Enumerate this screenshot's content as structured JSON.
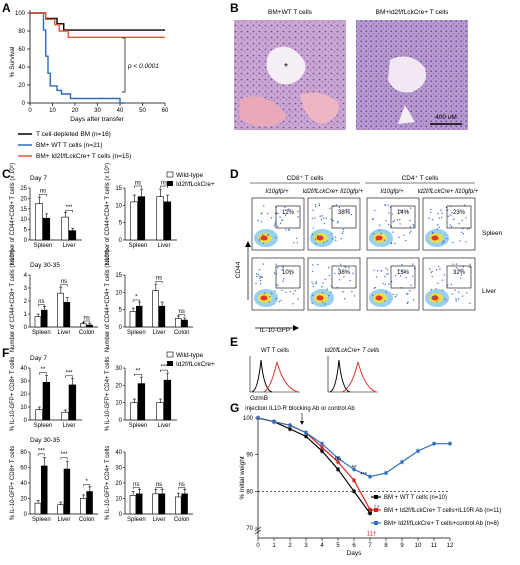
{
  "panels": {
    "A": {
      "label": "A",
      "ylabel": "% Survival",
      "xlabel": "Days after transfer",
      "yticks": [
        "0",
        "20",
        "40",
        "60",
        "80",
        "100"
      ],
      "xticks": [
        "0",
        "10",
        "20",
        "30",
        "40",
        "50",
        "60"
      ],
      "pvalue": "p < 0.0001",
      "legend": [
        "T cell-depleted BM (n=16)",
        "BM+ WT T cells (n=21)",
        "BM+ Id2f/fLckCre+ T cells (n=15)"
      ],
      "colors": [
        "#000000",
        "#2b6cb8",
        "#e2573a"
      ]
    },
    "B": {
      "label": "B",
      "titles": [
        "BM+WT T cells",
        "BM+Id2f/fLckCre+ T cells"
      ],
      "scale": "400 uM",
      "asterisk": "*"
    },
    "C": {
      "label": "C",
      "legend": [
        "Wild-type",
        "Id2f/fLckCre+"
      ],
      "day7": "Day 7",
      "day30": "Day 30-35",
      "yl1": "Number of CD44+CD8+ T cells (x 10⁵)",
      "yl2": "Number of CD44+CD4+ T cells (x 10⁵)",
      "ticks_day7_cd8": [
        "0",
        "5",
        "10",
        "15",
        "20",
        "25"
      ],
      "ticks_day7_cd4": [
        "0",
        "5",
        "10",
        "15"
      ],
      "ticks_d30_cd8": [
        "0",
        "1",
        "2",
        "3",
        "4"
      ],
      "ticks_d30_cd4": [
        "0",
        "5",
        "10",
        "15"
      ],
      "cats2": [
        "Spleen",
        "Liver"
      ],
      "cats3": [
        "Spleen",
        "Liver",
        "Colon"
      ],
      "sig": {
        "a": "ns",
        "b": "***",
        "c": "ns",
        "d": "ns",
        "e": "ns",
        "f": "ns",
        "g": "ns",
        "h": "*",
        "i": "ns"
      }
    },
    "D": {
      "label": "D",
      "col_groups": [
        "CD8⁺ T cells",
        "CD4⁺ T cells"
      ],
      "col_heads": [
        "Il10gfp/+",
        "Id2f/fLckCre+ Il10gfp/+",
        "Il10gfp/+",
        "Id2f/fLckCre+ Il10gfp/+"
      ],
      "rows": [
        "Spleen",
        "Liver"
      ],
      "pcts_spleen": [
        "12%",
        "38%",
        "14%",
        "23%"
      ],
      "pcts_liver": [
        "10%",
        "38%",
        "13%",
        "32%"
      ],
      "ylabel": "CD44",
      "xlabel": "IL-10-GFP"
    },
    "E": {
      "label": "E",
      "titles": [
        "WT T cells",
        "Id2f/fLckCre+ T cells"
      ],
      "xlabel": "GzmB"
    },
    "F": {
      "label": "F",
      "legend": [
        "Wild-type",
        "Id2f/fLckCre+"
      ],
      "day7": "Day 7",
      "day30": "Day 30-35",
      "yl1": "% IL-10-GFP+ CD8+ T cells",
      "yl2": "% IL-10-GFP+ CD4+ T cells",
      "ticks_d7_cd8": [
        "0",
        "10",
        "20",
        "30",
        "40"
      ],
      "ticks_d7_cd4": [
        "0",
        "10",
        "20",
        "30"
      ],
      "ticks_d30_cd8": [
        "0",
        "20",
        "40",
        "60",
        "80"
      ],
      "ticks_d30_cd4": [
        "0",
        "10",
        "20",
        "30",
        "40"
      ],
      "sig": {
        "a": "**",
        "b": "***",
        "c": "**",
        "d": "***",
        "e": "***",
        "f": "***",
        "g": "*",
        "h": "ns",
        "i": "ns",
        "j": "ns"
      }
    },
    "G": {
      "label": "G",
      "ylabel": "% Initial weight",
      "xlabel": "Days",
      "annot": "injection IL10-R blocking Ab or control Ab",
      "yticks": [
        "70",
        "80",
        "90",
        "100"
      ],
      "xticks": [
        "0",
        "1",
        "2",
        "3",
        "4",
        "5",
        "6",
        "7",
        "8",
        "9",
        "10",
        "11",
        "12"
      ],
      "legend": [
        "BM + WT T cells (n=10)",
        "BM + Id2f/fLckCre+ T cells+IL10R Ab (n=11)",
        "BM+ Id2f/fLckCre+ T cells+control Ab (n=8)"
      ],
      "colors": [
        "#000000",
        "#e2211c",
        "#2f6fb8"
      ],
      "sig": [
        "ns",
        "**",
        "***"
      ],
      "deaths": [
        "1†",
        "1†",
        "11†"
      ]
    }
  },
  "chart_data": [
    {
      "type": "line",
      "title": "",
      "xlabel": "Days after transfer",
      "ylabel": "% Survival",
      "xlim": [
        0,
        60
      ],
      "ylim": [
        0,
        100
      ],
      "series": [
        {
          "name": "T cell-depleted BM (n=16)",
          "values": [
            [
              0,
              100
            ],
            [
              5,
              100
            ],
            [
              7,
              94
            ],
            [
              12,
              88
            ],
            [
              15,
              81
            ],
            [
              60,
              81
            ]
          ]
        },
        {
          "name": "BM+ WT T cells (n=21)",
          "values": [
            [
              0,
              100
            ],
            [
              5,
              100
            ],
            [
              6,
              81
            ],
            [
              7,
              52
            ],
            [
              8,
              33
            ],
            [
              9,
              19
            ],
            [
              12,
              14
            ],
            [
              14,
              10
            ],
            [
              18,
              5
            ],
            [
              40,
              5
            ],
            [
              40,
              0
            ],
            [
              42,
              0
            ]
          ]
        },
        {
          "name": "BM+ Id2f/fLckCre+ T cells (n=15)",
          "values": [
            [
              0,
              100
            ],
            [
              5,
              100
            ],
            [
              7,
              93
            ],
            [
              11,
              87
            ],
            [
              13,
              80
            ],
            [
              17,
              73
            ],
            [
              60,
              73
            ]
          ]
        }
      ]
    },
    {
      "type": "bar",
      "title": "Day 7",
      "ylabel": "Number of CD44+CD8+ T cells (x 10⁵)",
      "categories": [
        "Spleen",
        "Liver"
      ],
      "series": [
        {
          "name": "Wild-type",
          "values": [
            17.5,
            11
          ]
        },
        {
          "name": "Id2f/fLckCre+",
          "values": [
            10.5,
            4.5
          ]
        }
      ],
      "ylim": [
        0,
        25
      ]
    },
    {
      "type": "bar",
      "title": "Day 7",
      "ylabel": "Number of CD44+CD4+ T cells (x 10⁵)",
      "categories": [
        "Spleen",
        "Liver"
      ],
      "series": [
        {
          "name": "Wild-type",
          "values": [
            11,
            12.5
          ]
        },
        {
          "name": "Id2f/fLckCre+",
          "values": [
            12.5,
            11
          ]
        }
      ],
      "ylim": [
        0,
        15
      ]
    },
    {
      "type": "bar",
      "title": "Day 30-35",
      "ylabel": "Number of CD44+CD8+ T cells (x 10⁵)",
      "categories": [
        "Spleen",
        "Liver",
        "Colon"
      ],
      "series": [
        {
          "name": "Wild-type",
          "values": [
            0.8,
            2.6,
            0.25
          ]
        },
        {
          "name": "Id2f/fLckCre+",
          "values": [
            1.3,
            1.9,
            0.15
          ]
        }
      ],
      "ylim": [
        0,
        4
      ]
    },
    {
      "type": "bar",
      "title": "Day 30-35",
      "ylabel": "Number of CD44+CD4+ T cells (x 10⁵)",
      "categories": [
        "Spleen",
        "Liver",
        "Colon"
      ],
      "series": [
        {
          "name": "Wild-type",
          "values": [
            4.5,
            10.5,
            2.5
          ]
        },
        {
          "name": "Id2f/fLckCre+",
          "values": [
            6,
            6,
            2
          ]
        }
      ],
      "ylim": [
        0,
        15
      ]
    },
    {
      "type": "bar",
      "title": "Day 7",
      "ylabel": "% IL-10-GFP+ CD8+ T cells",
      "categories": [
        "Spleen",
        "Liver"
      ],
      "series": [
        {
          "name": "Wild-type",
          "values": [
            8,
            6
          ]
        },
        {
          "name": "Id2f/fLckCre+",
          "values": [
            29,
            27
          ]
        }
      ],
      "ylim": [
        0,
        40
      ]
    },
    {
      "type": "bar",
      "title": "Day 7",
      "ylabel": "% IL-10-GFP+ CD4+ T cells",
      "categories": [
        "Spleen",
        "Liver"
      ],
      "series": [
        {
          "name": "Wild-type",
          "values": [
            10,
            10
          ]
        },
        {
          "name": "Id2f/fLckCre+",
          "values": [
            21,
            23
          ]
        }
      ],
      "ylim": [
        0,
        30
      ]
    },
    {
      "type": "bar",
      "title": "Day 30-35",
      "ylabel": "% IL-10-GFP+ CD8+ T cells",
      "categories": [
        "Spleen",
        "Liver",
        "Colon"
      ],
      "series": [
        {
          "name": "Wild-type",
          "values": [
            14,
            12,
            20
          ]
        },
        {
          "name": "Id2f/fLckCre+",
          "values": [
            62,
            58,
            29
          ]
        }
      ],
      "ylim": [
        0,
        80
      ]
    },
    {
      "type": "bar",
      "title": "Day 30-35",
      "ylabel": "% IL-10-GFP+ CD4+ T cells",
      "categories": [
        "Spleen",
        "Liver",
        "Colon"
      ],
      "series": [
        {
          "name": "Wild-type",
          "values": [
            12,
            13,
            11
          ]
        },
        {
          "name": "Id2f/fLckCre+",
          "values": [
            13,
            13,
            13
          ]
        }
      ],
      "ylim": [
        0,
        40
      ]
    },
    {
      "type": "line",
      "title": "",
      "xlabel": "Days",
      "ylabel": "% Initial weight",
      "xlim": [
        0,
        12
      ],
      "ylim": [
        70,
        100
      ],
      "series": [
        {
          "name": "BM + WT T cells (n=10)",
          "values": [
            [
              0,
              100
            ],
            [
              1,
              99
            ],
            [
              2,
              97
            ],
            [
              3,
              95
            ],
            [
              4,
              91
            ],
            [
              5,
              86
            ],
            [
              6,
              80
            ],
            [
              7,
              74
            ]
          ]
        },
        {
          "name": "BM + Id2f/fLckCre+ T cells+IL10R Ab (n=11)",
          "values": [
            [
              0,
              100
            ],
            [
              1,
              99
            ],
            [
              2,
              98
            ],
            [
              3,
              96
            ],
            [
              4,
              92
            ],
            [
              5,
              88
            ],
            [
              6,
              83
            ],
            [
              7,
              75
            ]
          ]
        },
        {
          "name": "BM+ Id2f/fLckCre+ T cells+control Ab (n=8)",
          "values": [
            [
              0,
              100
            ],
            [
              1,
              99
            ],
            [
              2,
              98
            ],
            [
              3,
              96
            ],
            [
              4,
              93
            ],
            [
              5,
              89
            ],
            [
              6,
              86
            ],
            [
              7,
              84
            ],
            [
              8,
              85
            ],
            [
              9,
              88
            ],
            [
              10,
              91
            ],
            [
              11,
              93
            ],
            [
              12,
              93
            ]
          ]
        }
      ]
    }
  ]
}
